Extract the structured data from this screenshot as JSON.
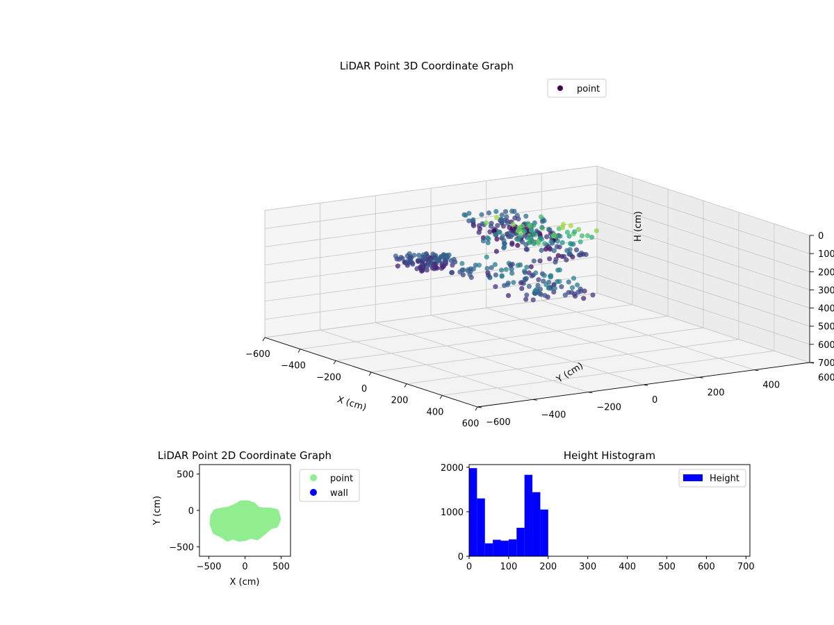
{
  "chart_data": [
    {
      "type": "scatter3d",
      "title": "LiDAR Point 3D Coordinate Graph",
      "xlabel": "X (cm)",
      "ylabel": "Y (cm)",
      "zlabel": "H (cm)",
      "xlim": [
        -600,
        600
      ],
      "ylim": [
        -600,
        600
      ],
      "zlim": [
        0,
        700
      ],
      "z_inverted": true,
      "x_ticks": [
        -600,
        -400,
        -200,
        0,
        200,
        400,
        600
      ],
      "y_ticks": [
        -600,
        -400,
        -200,
        0,
        200,
        400,
        600
      ],
      "z_ticks": [
        0,
        100,
        200,
        300,
        400,
        500,
        600,
        700
      ],
      "grid": true,
      "legend": {
        "placement": "top-right",
        "entries": [
          {
            "name": "point",
            "color": "#440154"
          }
        ]
      },
      "colormap": "viridis",
      "series": [
        {
          "name": "point",
          "clusters": [
            {
              "x": [
                -560,
                -230
              ],
              "y": [
                60,
                260
              ],
              "z": [
                140,
                230
              ]
            },
            {
              "x": [
                -230,
                120
              ],
              "y": [
                -80,
                160
              ],
              "z": [
                30,
                230
              ]
            },
            {
              "x": [
                60,
                560
              ],
              "y": [
                -360,
                -120
              ],
              "z": [
                120,
                210
              ]
            },
            {
              "x": [
                -200,
                -40
              ],
              "y": [
                -400,
                -250
              ],
              "z": [
                150,
                210
              ]
            }
          ]
        }
      ]
    },
    {
      "type": "scatter",
      "title": "LiDAR Point 2D Coordinate Graph",
      "xlabel": "X (cm)",
      "ylabel": "Y (cm)",
      "xlim": [
        -630,
        630
      ],
      "ylim": [
        -630,
        630
      ],
      "x_ticks": [
        -500,
        0,
        500
      ],
      "y_ticks": [
        -500,
        0,
        500
      ],
      "legend": {
        "placement": "outside-right",
        "entries": [
          {
            "name": "point",
            "color": "#90ee90"
          },
          {
            "name": "wall",
            "color": "#0000ff"
          }
        ]
      },
      "outline": {
        "x": [
          -450,
          -410,
          -320,
          -230,
          -140,
          -50,
          40,
          120,
          180,
          270,
          360,
          440,
          470,
          430,
          350,
          260,
          170,
          80,
          0,
          -80,
          -170,
          -240,
          -330,
          -420,
          -460
        ],
        "y": [
          -70,
          -10,
          10,
          20,
          60,
          110,
          110,
          80,
          20,
          10,
          10,
          -10,
          -120,
          -210,
          -230,
          -310,
          -380,
          -360,
          -390,
          -400,
          -370,
          -400,
          -340,
          -300,
          -190
        ]
      }
    },
    {
      "type": "bar",
      "title": "Height Histogram",
      "xlim": [
        0,
        710
      ],
      "ylim": [
        0,
        2060
      ],
      "x_ticks": [
        0,
        100,
        200,
        300,
        400,
        500,
        600,
        700
      ],
      "y_ticks": [
        0,
        1000,
        2000
      ],
      "bin_width": 20,
      "legend": {
        "placement": "top-right",
        "entries": [
          {
            "name": "Height",
            "color": "#0000ff"
          }
        ]
      },
      "series": [
        {
          "name": "Height",
          "bins": [
            0,
            20,
            40,
            60,
            80,
            100,
            120,
            140,
            160,
            180
          ],
          "values": [
            1980,
            1300,
            290,
            370,
            350,
            380,
            640,
            1830,
            1440,
            1050
          ]
        }
      ]
    }
  ]
}
